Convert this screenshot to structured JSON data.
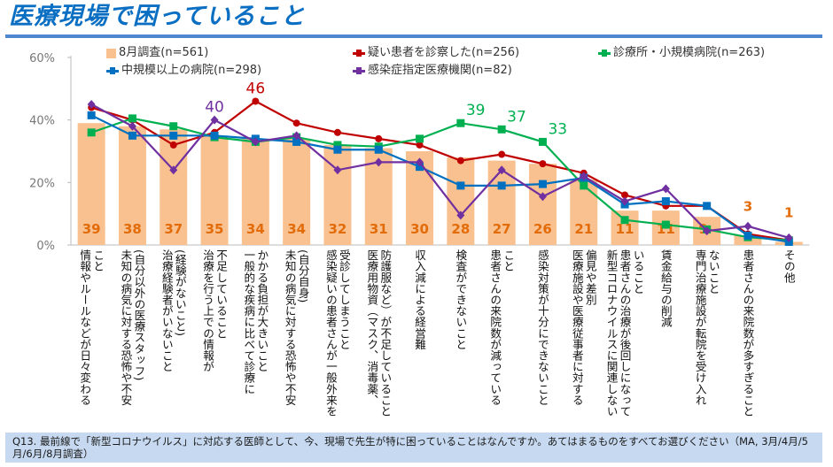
{
  "title": "医療現場で困っていること",
  "footnote": "Q13. 最前線で「新型コロナウイルス」に対応する医師として、今、現場で先生が特に困っていることはなんですか。あてはまるものをすべてお選びください（MA, 3月/4月/5月/6月/8月調査）",
  "chart_data": {
    "type": "bar+line",
    "ylim": [
      0,
      60
    ],
    "yticks": [
      "0%",
      "20%",
      "40%",
      "60%"
    ],
    "grid": true,
    "legend_position": "top",
    "categories": [
      [
        "情報やルールなどが日々変わる",
        "こと"
      ],
      [
        "未知の病気に対する恐怖や不安",
        "(自分以外の医療スタッフ)"
      ],
      [
        "治療経験者がいないこと",
        "(経験がないこと)"
      ],
      [
        "治療を行う上での情報が",
        "不足していること"
      ],
      [
        "一般的な疾病に比べて診療に",
        "かかる負担が大きいこと"
      ],
      [
        "未知の病気に対する恐怖や不安",
        "(自分自身)"
      ],
      [
        "感染疑いの患者さんが一般外来を",
        "受診してしまうこと"
      ],
      [
        "医療用物資（マスク、消毒薬、",
        "防護服など）が不足していること"
      ],
      [
        "収入減による経営難"
      ],
      [
        "検査ができないこと"
      ],
      [
        "患者さんの来院数が減っている",
        "こと"
      ],
      [
        "感染対策が十分にできないこと"
      ],
      [
        "医療施設や医療従事者に対する",
        "偏見や差別"
      ],
      [
        "新型コロナウイルスに関連しない",
        "患者さんの治療が後回しになって",
        "いること"
      ],
      [
        "賃金給与の削減"
      ],
      [
        "専門治療施設が転院を受け入れ",
        "ないこと"
      ],
      [
        "患者さんの来院数が多すぎること"
      ],
      [
        "その他"
      ]
    ],
    "bars": {
      "name": "8月調査(n=561)",
      "color": "#f9c18f",
      "label_color": "#e36c0a",
      "values": [
        39,
        38,
        37,
        35,
        34,
        34,
        32,
        31,
        30,
        28,
        27,
        26,
        21,
        11,
        11,
        9,
        3,
        1
      ]
    },
    "series": [
      {
        "name": "疑い患者を診察した(n=256)",
        "color": "#c00000",
        "marker": "circle",
        "values": [
          44,
          40,
          32,
          36,
          46,
          39,
          36,
          34,
          32,
          27,
          29,
          26,
          23,
          16,
          12.5,
          12.5,
          3.5,
          1.5
        ],
        "labels": {
          "4": "46"
        }
      },
      {
        "name": "診療所・小規模病院(n=263)",
        "color": "#00b050",
        "marker": "square",
        "values": [
          36,
          40.5,
          38,
          34.5,
          33,
          34.5,
          32,
          31.5,
          34,
          39,
          37,
          33,
          19,
          8,
          6.5,
          5,
          2.5,
          1.5
        ],
        "labels": {
          "9": "39",
          "10": "37",
          "11": "33"
        }
      },
      {
        "name": "中規模以上の病院(n=298)",
        "color": "#0070c0",
        "marker": "square",
        "values": [
          41.5,
          35,
          35,
          35,
          34,
          33,
          30.5,
          30.5,
          25,
          19,
          19,
          19.5,
          21.5,
          13,
          14,
          12.5,
          3,
          1
        ]
      },
      {
        "name": "感染症指定医療機関(n=82)",
        "color": "#7030a0",
        "marker": "diamond",
        "values": [
          45,
          38,
          24,
          40,
          33,
          35,
          24,
          26.5,
          26.5,
          9.5,
          24,
          15.5,
          22,
          14,
          18,
          4.5,
          6,
          2.3
        ],
        "labels": {
          "3": "40"
        }
      }
    ]
  }
}
